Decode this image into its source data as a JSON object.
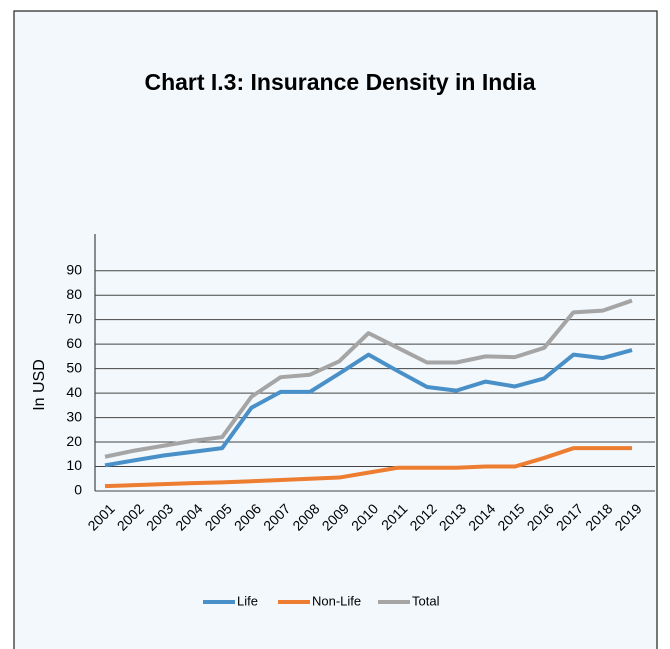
{
  "chart_data": {
    "type": "line",
    "title": "Chart I.3: Insurance Density in India",
    "y_label": "In USD",
    "categories": [
      "2001",
      "2002",
      "2003",
      "2004",
      "2005",
      "2006",
      "2007",
      "2008",
      "2009",
      "2010",
      "2011",
      "2012",
      "2013",
      "2014",
      "2015",
      "2016",
      "2017",
      "2018",
      "2019"
    ],
    "series": [
      {
        "name": "Life",
        "color": "#4a90c8",
        "values": [
          10.5,
          12.5,
          14.5,
          16,
          17.5,
          34,
          40.5,
          40.5,
          48,
          55.7,
          49,
          42.5,
          41,
          44.7,
          42.7,
          46,
          55.7,
          54.3,
          57.6
        ]
      },
      {
        "name": "Non-Life",
        "color": "#ed7d31",
        "values": [
          2,
          2.4,
          2.8,
          3.2,
          3.5,
          4,
          4.5,
          5,
          5.5,
          7.5,
          9.5,
          9.5,
          9.5,
          10,
          10,
          13.5,
          17.5,
          17.5,
          17.5
        ]
      },
      {
        "name": "Total",
        "color": "#a5a5a5",
        "values": [
          14,
          16.5,
          18.5,
          20.5,
          22,
          38.5,
          46.5,
          47.5,
          53,
          64.5,
          58.5,
          52.5,
          52.5,
          55,
          54.7,
          58.5,
          73,
          73.7,
          77.8
        ]
      }
    ],
    "ylim": [
      0,
      105
    ],
    "yticks": [
      0,
      10,
      20,
      30,
      40,
      50,
      60,
      70,
      80,
      90
    ],
    "grid": true,
    "legend": "bottom"
  }
}
